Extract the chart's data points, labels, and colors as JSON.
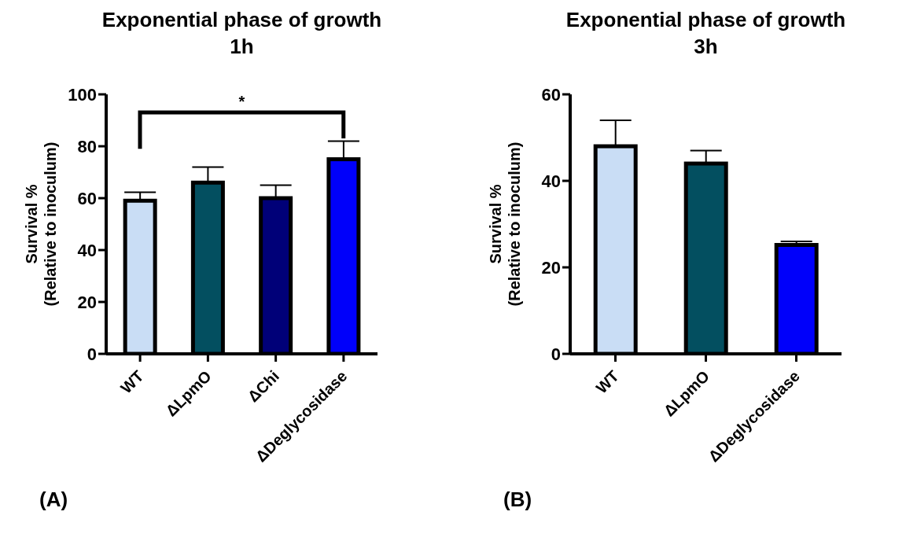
{
  "chart_data": [
    {
      "type": "bar",
      "title": "Exponential phase of growth\n1h",
      "ylabel": "Survival %\n(Relative to inoculum)",
      "categories": [
        "WT",
        "ΔLpmO",
        "ΔChi",
        "ΔDeglycosidase"
      ],
      "values": [
        59,
        66,
        60,
        75
      ],
      "colors": [
        "#c9ddf5",
        "#034f60",
        "#000078",
        "#0000fa"
      ],
      "errors": [
        [
          59,
          62.3
        ],
        [
          66,
          72
        ],
        [
          60,
          65
        ],
        [
          75,
          82
        ]
      ],
      "ylim": [
        0,
        100
      ],
      "yticks": [
        0,
        20,
        40,
        60,
        80,
        100
      ],
      "grid": false,
      "legend": false,
      "annotations": [
        "*",
        "(A)"
      ]
    },
    {
      "type": "bar",
      "title": "Exponential phase of growth\n3h",
      "ylabel": "Survival %\n(Relative to inoculum)",
      "categories": [
        "WT",
        "ΔLpmO",
        "ΔDeglycosidase"
      ],
      "values": [
        48,
        44,
        25.2
      ],
      "colors": [
        "#c9ddf5",
        "#034f60",
        "#0000fa"
      ],
      "errors": [
        [
          48,
          54
        ],
        [
          44,
          47
        ],
        [
          25.2,
          26
        ]
      ],
      "ylim": [
        0,
        60
      ],
      "yticks": [
        0,
        20,
        40,
        60
      ],
      "grid": false,
      "legend": false,
      "annotations": [
        "(B)"
      ]
    }
  ]
}
